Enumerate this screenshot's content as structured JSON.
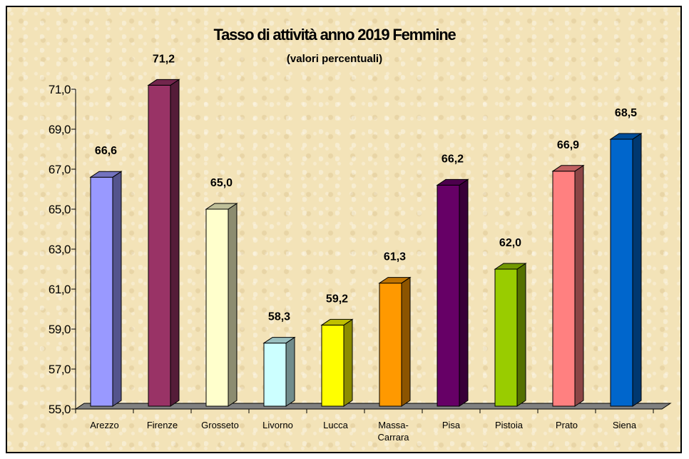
{
  "chart_data": {
    "type": "bar",
    "title": "Tasso di attività anno 2019 Femmine",
    "subtitle": "(valori percentuali)",
    "xlabel": "",
    "ylabel": "",
    "ylim": [
      55,
      71
    ],
    "yticks": [
      "55,0",
      "57,0",
      "59,0",
      "61,0",
      "63,0",
      "65,0",
      "67,0",
      "69,0",
      "71,0"
    ],
    "categories": [
      "Arezzo",
      "Firenze",
      "Grosseto",
      "Livorno",
      "Lucca",
      "Massa-Carrara",
      "Pisa",
      "Pistoia",
      "Prato",
      "Siena"
    ],
    "category_labels": [
      [
        "Arezzo"
      ],
      [
        "Firenze"
      ],
      [
        "Grosseto"
      ],
      [
        "Livorno"
      ],
      [
        "Lucca"
      ],
      [
        "Massa-",
        "Carrara"
      ],
      [
        "Pisa"
      ],
      [
        "Pistoia"
      ],
      [
        "Prato"
      ],
      [
        "Siena"
      ]
    ],
    "values": [
      66.6,
      71.2,
      65.0,
      58.3,
      59.2,
      61.3,
      66.2,
      62.0,
      66.9,
      68.5
    ],
    "data_labels": [
      "66,6",
      "71,2",
      "65,0",
      "58,3",
      "59,2",
      "61,3",
      "66,2",
      "62,0",
      "66,9",
      "68,5"
    ],
    "bar_colors": [
      "#9999ff",
      "#993366",
      "#ffffcc",
      "#ccffff",
      "#ffff00",
      "#ff9900",
      "#660066",
      "#99cc00",
      "#ff8080",
      "#0066cc"
    ],
    "grid": false,
    "legend": "none",
    "style": "3d-bar"
  }
}
